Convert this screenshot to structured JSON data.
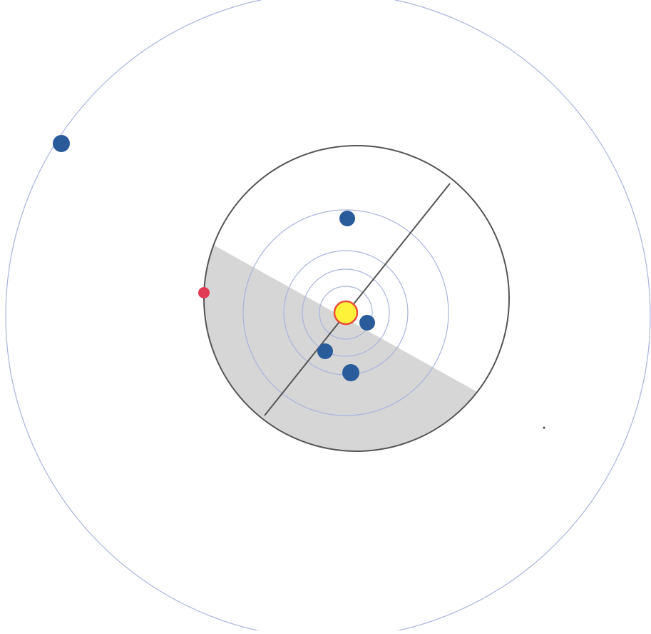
{
  "diagram": {
    "colors": {
      "background": "#ffffff",
      "orbit_line": "#aab4dc",
      "boundary_line": "#555555",
      "shaded_region": "#d6d6d6",
      "sun_fill": "#fff23a",
      "sun_stroke": "#e8503a",
      "planet_fill": "#2a5b9a",
      "small_body_fill": "#e03a55"
    },
    "central_body": {
      "icon": "sun-icon"
    },
    "inner_orbit_count": 4,
    "outer_orbit_count": 1,
    "planet_count": 5,
    "small_body_count": 1
  }
}
